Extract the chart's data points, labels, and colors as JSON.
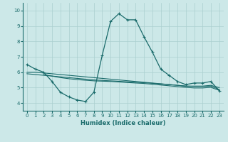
{
  "title": "",
  "xlabel": "Humidex (Indice chaleur)",
  "bg_color": "#cce8e8",
  "grid_color": "#aacfcf",
  "line_color": "#1a6b6b",
  "xlim": [
    -0.5,
    23.5
  ],
  "ylim": [
    3.5,
    10.5
  ],
  "xticks": [
    0,
    1,
    2,
    3,
    4,
    5,
    6,
    7,
    8,
    9,
    10,
    11,
    12,
    13,
    14,
    15,
    16,
    17,
    18,
    19,
    20,
    21,
    22,
    23
  ],
  "yticks": [
    4,
    5,
    6,
    7,
    8,
    9,
    10
  ],
  "line1_x": [
    0,
    1,
    2,
    3,
    4,
    5,
    6,
    7,
    8,
    9,
    10,
    11,
    12,
    13,
    14,
    15,
    16,
    17,
    18,
    19,
    20,
    21,
    22,
    23
  ],
  "line1_y": [
    6.5,
    6.2,
    6.0,
    5.4,
    4.7,
    4.4,
    4.2,
    4.1,
    4.7,
    7.1,
    9.3,
    9.8,
    9.4,
    9.4,
    8.3,
    7.3,
    6.2,
    5.8,
    5.4,
    5.2,
    5.3,
    5.3,
    5.4,
    4.8
  ],
  "line2_x": [
    0,
    1,
    2,
    3,
    4,
    5,
    6,
    7,
    8,
    9,
    10,
    11,
    12,
    13,
    14,
    15,
    16,
    17,
    18,
    19,
    20,
    21,
    22,
    23
  ],
  "line2_y": [
    6.0,
    6.0,
    5.95,
    5.9,
    5.85,
    5.8,
    5.75,
    5.7,
    5.65,
    5.6,
    5.55,
    5.5,
    5.45,
    5.4,
    5.35,
    5.3,
    5.25,
    5.2,
    5.15,
    5.1,
    5.1,
    5.1,
    5.15,
    5.0
  ],
  "line3_x": [
    0,
    1,
    2,
    3,
    4,
    5,
    6,
    7,
    8,
    9,
    10,
    11,
    12,
    13,
    14,
    15,
    16,
    17,
    18,
    19,
    20,
    21,
    22,
    23
  ],
  "line3_y": [
    5.9,
    5.85,
    5.8,
    5.75,
    5.7,
    5.65,
    5.6,
    5.55,
    5.5,
    5.47,
    5.44,
    5.41,
    5.38,
    5.35,
    5.32,
    5.28,
    5.24,
    5.2,
    5.15,
    5.1,
    5.08,
    5.08,
    5.1,
    4.88
  ],
  "line4_x": [
    2,
    3,
    4,
    5,
    6,
    7,
    8,
    9,
    10,
    11,
    12,
    13,
    14,
    15,
    16,
    17,
    18,
    19,
    20,
    21,
    22,
    23
  ],
  "line4_y": [
    5.85,
    5.75,
    5.65,
    5.58,
    5.52,
    5.48,
    5.44,
    5.42,
    5.4,
    5.37,
    5.33,
    5.3,
    5.27,
    5.22,
    5.17,
    5.12,
    5.07,
    5.02,
    4.98,
    4.98,
    5.02,
    4.82
  ]
}
